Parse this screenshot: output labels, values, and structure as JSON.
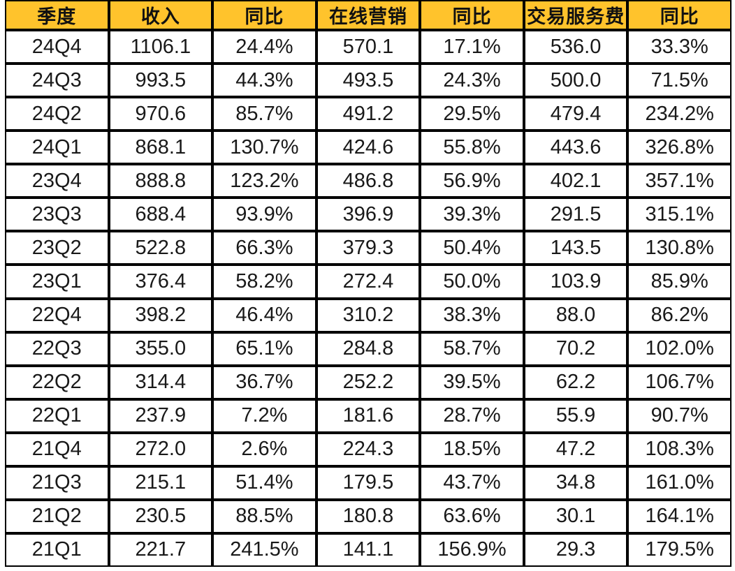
{
  "colors": {
    "header_bg": "#FFC32C",
    "grid_border": "#000000",
    "cell_bg": "#FFFFFF",
    "header_text": "#111111",
    "cell_text": "#191919"
  },
  "chart_data": {
    "type": "table",
    "columns": [
      "季度",
      "收入",
      "同比",
      "在线营销",
      "同比",
      "交易服务费",
      "同比"
    ],
    "rows": [
      [
        "24Q4",
        "1106.1",
        "24.4%",
        "570.1",
        "17.1%",
        "536.0",
        "33.3%"
      ],
      [
        "24Q3",
        "993.5",
        "44.3%",
        "493.5",
        "24.3%",
        "500.0",
        "71.5%"
      ],
      [
        "24Q2",
        "970.6",
        "85.7%",
        "491.2",
        "29.5%",
        "479.4",
        "234.2%"
      ],
      [
        "24Q1",
        "868.1",
        "130.7%",
        "424.6",
        "55.8%",
        "443.6",
        "326.8%"
      ],
      [
        "23Q4",
        "888.8",
        "123.2%",
        "486.8",
        "56.9%",
        "402.1",
        "357.1%"
      ],
      [
        "23Q3",
        "688.4",
        "93.9%",
        "396.9",
        "39.3%",
        "291.5",
        "315.1%"
      ],
      [
        "23Q2",
        "522.8",
        "66.3%",
        "379.3",
        "50.4%",
        "143.5",
        "130.8%"
      ],
      [
        "23Q1",
        "376.4",
        "58.2%",
        "272.4",
        "50.0%",
        "103.9",
        "85.9%"
      ],
      [
        "22Q4",
        "398.2",
        "46.4%",
        "310.2",
        "38.3%",
        "88.0",
        "86.2%"
      ],
      [
        "22Q3",
        "355.0",
        "65.1%",
        "284.8",
        "58.7%",
        "70.2",
        "102.0%"
      ],
      [
        "22Q2",
        "314.4",
        "36.7%",
        "252.2",
        "39.5%",
        "62.2",
        "106.7%"
      ],
      [
        "22Q1",
        "237.9",
        "7.2%",
        "181.6",
        "28.7%",
        "55.9",
        "90.7%"
      ],
      [
        "21Q4",
        "272.0",
        "2.6%",
        "224.3",
        "18.5%",
        "47.2",
        "108.3%"
      ],
      [
        "21Q3",
        "215.1",
        "51.4%",
        "179.5",
        "43.7%",
        "34.8",
        "161.0%"
      ],
      [
        "21Q2",
        "230.5",
        "88.5%",
        "180.8",
        "63.6%",
        "30.1",
        "164.1%"
      ],
      [
        "21Q1",
        "221.7",
        "241.5%",
        "141.1",
        "156.9%",
        "29.3",
        "179.5%"
      ]
    ]
  }
}
